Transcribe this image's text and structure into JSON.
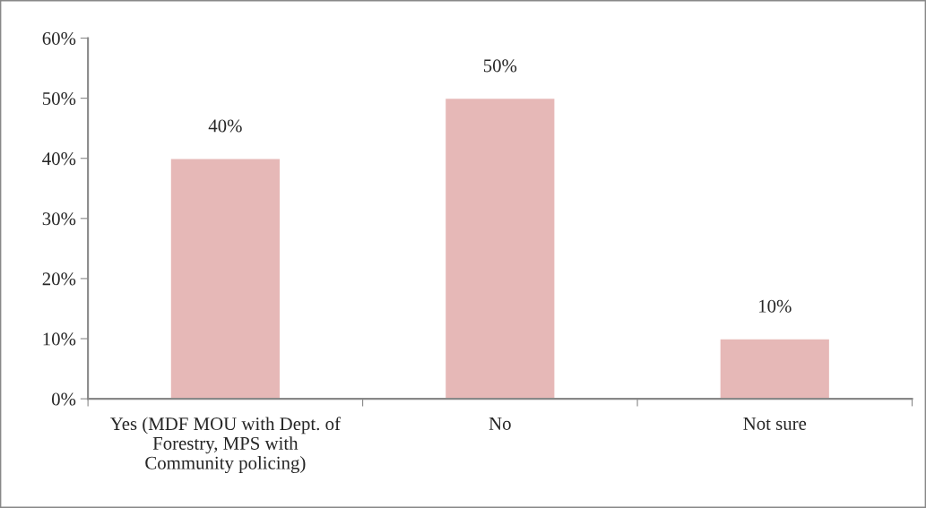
{
  "chart_data": {
    "type": "bar",
    "categories": [
      "Yes (MDF MOU with Dept. of\nForestry, MPS with\nCommunity policing)",
      "No",
      "Not sure"
    ],
    "values": [
      40,
      50,
      10
    ],
    "color": "#e6b8b7",
    "ylim": [
      0,
      60
    ],
    "yticks": [
      {
        "value": 0,
        "label": "0%"
      },
      {
        "value": 10,
        "label": "10%"
      },
      {
        "value": 20,
        "label": "20%"
      },
      {
        "value": 30,
        "label": "30%"
      },
      {
        "value": 40,
        "label": "40%"
      },
      {
        "value": 50,
        "label": "50%"
      },
      {
        "value": 60,
        "label": "60%"
      }
    ],
    "value_labels": [
      "40%",
      "50%",
      "10%"
    ],
    "grid": false,
    "legend": false
  }
}
